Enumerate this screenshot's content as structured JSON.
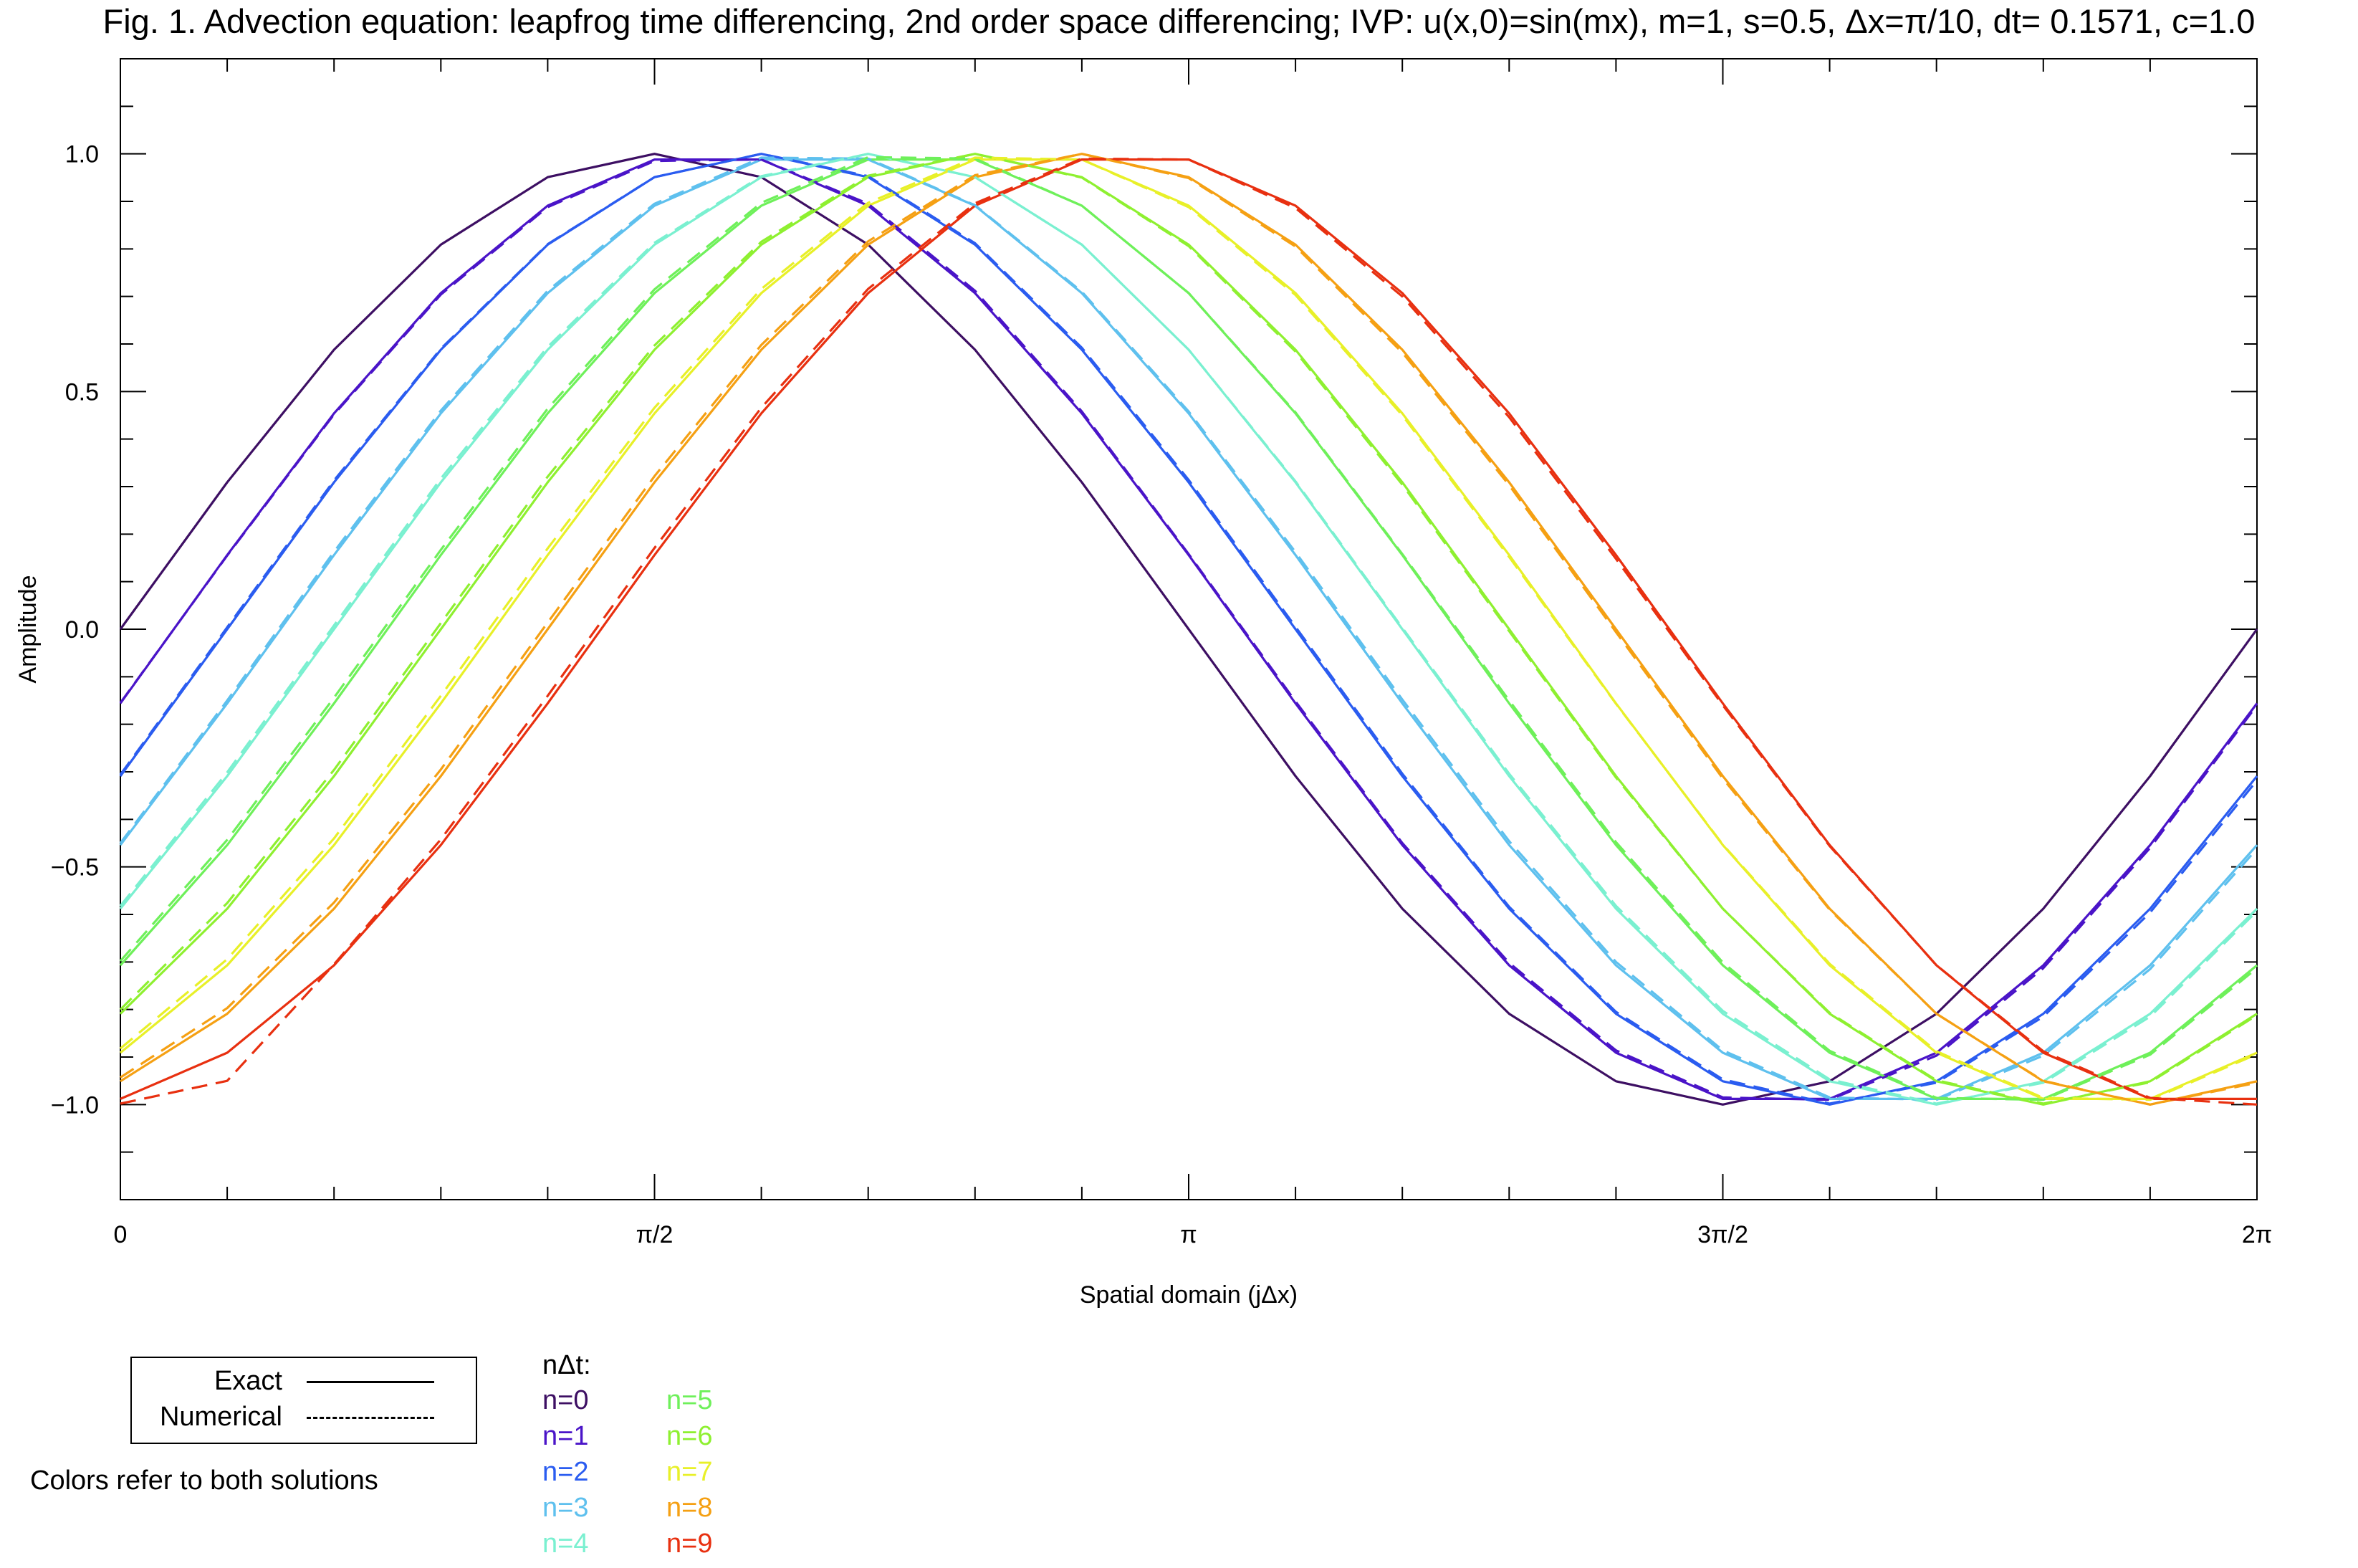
{
  "figure": {
    "title": "Fig. 1. Advection equation: leapfrog time differencing, 2nd order space differencing;  IVP: u(x,0)=sin(mx), m=1, s=0.5, Δx=π/10, dt= 0.1571, c=1.0"
  },
  "legend": {
    "exact_label": "Exact",
    "numerical_label": "Numerical",
    "note": "Colors refer to both solutions",
    "ndt_header": "nΔt:",
    "items": [
      {
        "label": "n=0",
        "color": "#3d0f63"
      },
      {
        "label": "n=1",
        "color": "#4a14c8"
      },
      {
        "label": "n=2",
        "color": "#2a5cf0"
      },
      {
        "label": "n=3",
        "color": "#5ec0ee"
      },
      {
        "label": "n=4",
        "color": "#7af0d0"
      },
      {
        "label": "n=5",
        "color": "#6ef05a"
      },
      {
        "label": "n=6",
        "color": "#8ef030"
      },
      {
        "label": "n=7",
        "color": "#e8f028"
      },
      {
        "label": "n=8",
        "color": "#f5a013"
      },
      {
        "label": "n=9",
        "color": "#e83010"
      }
    ]
  },
  "chart_data": {
    "type": "line",
    "title": "Fig. 1. Advection equation: leapfrog time differencing, 2nd order space differencing;  IVP: u(x,0)=sin(mx), m=1, s=0.5, Δx=π/10, dt= 0.1571, c=1.0",
    "xlabel": "Spatial domain (jΔx)",
    "ylabel": "Amplitude",
    "xlim": [
      0,
      6.2832
    ],
    "ylim": [
      -1.2,
      1.2
    ],
    "x_ticks": [
      {
        "value": 0,
        "label": "0"
      },
      {
        "value": 1.5708,
        "label": "π/2"
      },
      {
        "value": 3.1416,
        "label": "π"
      },
      {
        "value": 4.7124,
        "label": "3π/2"
      },
      {
        "value": 6.2832,
        "label": "2π"
      }
    ],
    "y_ticks": [
      {
        "value": 1.0,
        "label": "1.0"
      },
      {
        "value": 0.5,
        "label": "0.5"
      },
      {
        "value": 0.0,
        "label": "0.0"
      },
      {
        "value": -0.5,
        "label": "−0.5"
      },
      {
        "value": -1.0,
        "label": "−1.0"
      }
    ],
    "x": [
      0,
      0.3142,
      0.6283,
      0.9425,
      1.2566,
      1.5708,
      1.885,
      2.1991,
      2.5133,
      2.8274,
      3.1416,
      3.4558,
      3.7699,
      4.0841,
      4.3982,
      4.7124,
      5.0265,
      5.3407,
      5.6549,
      5.969,
      6.2832
    ],
    "exact": [
      {
        "name": "n=0",
        "values": [
          0.0,
          0.309,
          0.588,
          0.809,
          0.951,
          1.0,
          0.951,
          0.809,
          0.588,
          0.309,
          0.0,
          -0.309,
          -0.588,
          -0.809,
          -0.951,
          -1.0,
          -0.951,
          -0.809,
          -0.588,
          -0.309,
          0.0
        ]
      },
      {
        "name": "n=1",
        "values": [
          -0.156,
          0.156,
          0.454,
          0.707,
          0.891,
          0.988,
          0.988,
          0.891,
          0.707,
          0.454,
          0.156,
          -0.156,
          -0.454,
          -0.707,
          -0.891,
          -0.988,
          -0.988,
          -0.891,
          -0.707,
          -0.454,
          -0.156
        ]
      },
      {
        "name": "n=2",
        "values": [
          -0.309,
          0.0,
          0.309,
          0.588,
          0.809,
          0.951,
          1.0,
          0.951,
          0.809,
          0.588,
          0.309,
          0.0,
          -0.309,
          -0.588,
          -0.809,
          -0.951,
          -1.0,
          -0.951,
          -0.809,
          -0.588,
          -0.309
        ]
      },
      {
        "name": "n=3",
        "values": [
          -0.454,
          -0.156,
          0.156,
          0.454,
          0.707,
          0.891,
          0.988,
          0.988,
          0.891,
          0.707,
          0.454,
          0.156,
          -0.156,
          -0.454,
          -0.707,
          -0.891,
          -0.988,
          -0.988,
          -0.891,
          -0.707,
          -0.454
        ]
      },
      {
        "name": "n=4",
        "values": [
          -0.588,
          -0.309,
          0.0,
          0.309,
          0.588,
          0.809,
          0.951,
          1.0,
          0.951,
          0.809,
          0.588,
          0.309,
          0.0,
          -0.309,
          -0.588,
          -0.809,
          -0.951,
          -1.0,
          -0.951,
          -0.809,
          -0.588
        ]
      },
      {
        "name": "n=5",
        "values": [
          -0.707,
          -0.454,
          -0.156,
          0.156,
          0.454,
          0.707,
          0.891,
          0.988,
          0.988,
          0.891,
          0.707,
          0.454,
          0.156,
          -0.156,
          -0.454,
          -0.707,
          -0.891,
          -0.988,
          -0.988,
          -0.891,
          -0.707
        ]
      },
      {
        "name": "n=6",
        "values": [
          -0.809,
          -0.588,
          -0.309,
          0.0,
          0.309,
          0.588,
          0.809,
          0.951,
          1.0,
          0.951,
          0.809,
          0.588,
          0.309,
          0.0,
          -0.309,
          -0.588,
          -0.809,
          -0.951,
          -1.0,
          -0.951,
          -0.809
        ]
      },
      {
        "name": "n=7",
        "values": [
          -0.891,
          -0.707,
          -0.454,
          -0.156,
          0.156,
          0.454,
          0.707,
          0.891,
          0.988,
          0.988,
          0.891,
          0.707,
          0.454,
          0.156,
          -0.156,
          -0.454,
          -0.707,
          -0.891,
          -0.988,
          -0.988,
          -0.891
        ]
      },
      {
        "name": "n=8",
        "values": [
          -0.951,
          -0.809,
          -0.588,
          -0.309,
          0.0,
          0.309,
          0.588,
          0.809,
          0.951,
          1.0,
          0.951,
          0.809,
          0.588,
          0.309,
          0.0,
          -0.309,
          -0.588,
          -0.809,
          -0.951,
          -1.0,
          -0.951
        ]
      },
      {
        "name": "n=9",
        "values": [
          -0.988,
          -0.891,
          -0.707,
          -0.454,
          -0.156,
          0.156,
          0.454,
          0.707,
          0.891,
          0.988,
          0.988,
          0.891,
          0.707,
          0.454,
          0.156,
          -0.156,
          -0.454,
          -0.707,
          -0.891,
          -0.988,
          -0.988
        ]
      }
    ],
    "numerical": [
      {
        "name": "n=1",
        "values": [
          -0.155,
          0.155,
          0.452,
          0.704,
          0.888,
          0.985,
          0.988,
          0.895,
          0.712,
          0.458,
          0.158,
          -0.152,
          -0.45,
          -0.702,
          -0.886,
          -0.985,
          -0.99,
          -0.897,
          -0.713,
          -0.46,
          -0.16
        ]
      },
      {
        "name": "n=2",
        "values": [
          -0.306,
          0.004,
          0.313,
          0.59,
          0.81,
          0.951,
          1.0,
          0.953,
          0.812,
          0.592,
          0.314,
          0.005,
          -0.304,
          -0.584,
          -0.805,
          -0.947,
          -0.998,
          -0.954,
          -0.815,
          -0.596,
          -0.318
        ]
      },
      {
        "name": "n=3",
        "values": [
          -0.45,
          -0.15,
          0.163,
          0.46,
          0.712,
          0.895,
          0.992,
          0.99,
          0.892,
          0.71,
          0.458,
          0.162,
          -0.148,
          -0.446,
          -0.7,
          -0.886,
          -0.985,
          -0.99,
          -0.897,
          -0.715,
          -0.462
        ]
      },
      {
        "name": "n=4",
        "values": [
          -0.582,
          -0.301,
          0.008,
          0.317,
          0.594,
          0.813,
          0.953,
          1.0,
          0.951,
          0.809,
          0.588,
          0.311,
          0.003,
          -0.304,
          -0.582,
          -0.803,
          -0.947,
          -0.998,
          -0.954,
          -0.815,
          -0.593
        ]
      },
      {
        "name": "n=5",
        "values": [
          -0.698,
          -0.443,
          -0.144,
          0.167,
          0.464,
          0.715,
          0.897,
          0.993,
          0.99,
          0.891,
          0.707,
          0.456,
          0.158,
          -0.15,
          -0.448,
          -0.701,
          -0.887,
          -0.986,
          -0.99,
          -0.895,
          -0.713
        ]
      },
      {
        "name": "n=6",
        "values": [
          -0.8,
          -0.576,
          -0.296,
          0.013,
          0.321,
          0.597,
          0.815,
          0.954,
          1.0,
          0.95,
          0.806,
          0.584,
          0.304,
          -0.004,
          -0.312,
          -0.588,
          -0.807,
          -0.949,
          -0.998,
          -0.953,
          -0.812
        ]
      },
      {
        "name": "n=7",
        "values": [
          -0.882,
          -0.694,
          -0.44,
          -0.14,
          0.17,
          0.466,
          0.716,
          0.897,
          0.992,
          0.988,
          0.888,
          0.703,
          0.45,
          0.152,
          -0.157,
          -0.453,
          -0.704,
          -0.888,
          -0.986,
          -0.99,
          -0.894
        ]
      },
      {
        "name": "n=8",
        "values": [
          -0.943,
          -0.797,
          -0.575,
          -0.295,
          0.014,
          0.322,
          0.598,
          0.816,
          0.955,
          1.0,
          0.949,
          0.805,
          0.582,
          0.303,
          -0.006,
          -0.314,
          -0.59,
          -0.809,
          -0.95,
          -1.0,
          -0.954
        ]
      },
      {
        "name": "n=9",
        "values": [
          -0.998,
          -0.95,
          -0.705,
          -0.442,
          -0.14,
          0.171,
          0.466,
          0.716,
          0.896,
          0.99,
          0.988,
          0.886,
          0.7,
          0.446,
          0.148,
          -0.16,
          -0.456,
          -0.707,
          -0.888,
          -0.986,
          -1.0
        ]
      }
    ]
  }
}
